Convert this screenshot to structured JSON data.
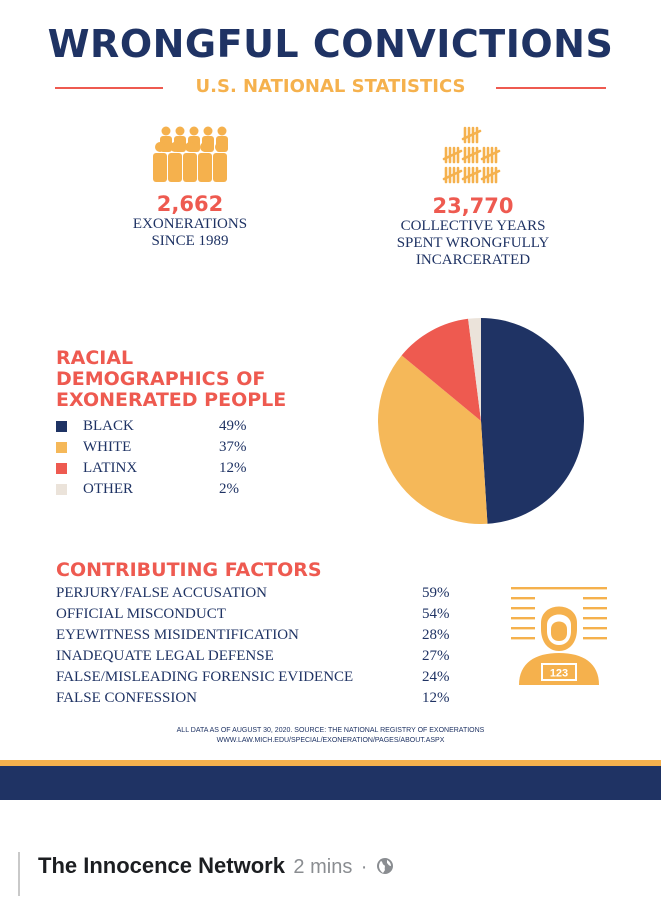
{
  "infographic": {
    "title": "WRONGFUL CONVICTIONS",
    "subtitle": "U.S. NATIONAL STATISTICS",
    "stats": [
      {
        "icon": "people-icon",
        "number": "2,662",
        "caption_lines": [
          "EXONERATIONS",
          "SINCE 1989"
        ]
      },
      {
        "icon": "tally-marks-icon",
        "number": "23,770",
        "caption_lines": [
          "COLLECTIVE YEARS",
          "SPENT WRONGFULLY",
          "INCARCERATED"
        ]
      }
    ],
    "race": {
      "heading_lines": [
        "RACIAL",
        "DEMOGRAPHICS OF",
        "EXONERATED PEOPLE"
      ],
      "items": [
        {
          "label": "BLACK",
          "value": "49%",
          "percent": 49,
          "color": "#1f3364"
        },
        {
          "label": "WHITE",
          "value": "37%",
          "percent": 37,
          "color": "#f5b859"
        },
        {
          "label": "LATINX",
          "value": "12%",
          "percent": 12,
          "color": "#ee5a50"
        },
        {
          "label": "OTHER",
          "value": "2%",
          "percent": 2,
          "color": "#ebe3da"
        }
      ]
    },
    "factors": {
      "heading": "CONTRIBUTING FACTORS",
      "items": [
        {
          "label": "PERJURY/FALSE ACCUSATION",
          "value": "59%"
        },
        {
          "label": "OFFICIAL MISCONDUCT",
          "value": "54%"
        },
        {
          "label": "EYEWITNESS MISIDENTIFICATION",
          "value": "28%"
        },
        {
          "label": "INADEQUATE LEGAL DEFENSE",
          "value": "27%"
        },
        {
          "label": "FALSE/MISLEADING FORENSIC EVIDENCE",
          "value": "24%"
        },
        {
          "label": "FALSE CONFESSION",
          "value": "12%"
        }
      ],
      "mugshot_icon": "mugshot-icon",
      "mugshot_number": "123"
    },
    "footnote_lines": [
      "ALL DATA AS OF AUGUST 30, 2020. SOURCE: THE NATIONAL REGISTRY OF EXONERATIONS",
      "WWW.LAW.MICH.EDU/SPECIAL/EXONERATION/PAGES/ABOUT.ASPX"
    ],
    "colors": {
      "navy": "#1f3364",
      "coral": "#ee5a50",
      "gold": "#f5b14d"
    }
  },
  "chart_data": {
    "type": "pie",
    "title": "RACIAL DEMOGRAPHICS OF EXONERATED PEOPLE",
    "categories": [
      "BLACK",
      "WHITE",
      "LATINX",
      "OTHER"
    ],
    "values": [
      49,
      37,
      12,
      2
    ],
    "colors": [
      "#1f3364",
      "#f5b859",
      "#ee5a50",
      "#ebe3da"
    ],
    "legend_position": "left"
  },
  "post": {
    "author": "The Innocence Network",
    "time": "2 mins",
    "separator": "·",
    "visibility_icon": "globe-icon"
  }
}
